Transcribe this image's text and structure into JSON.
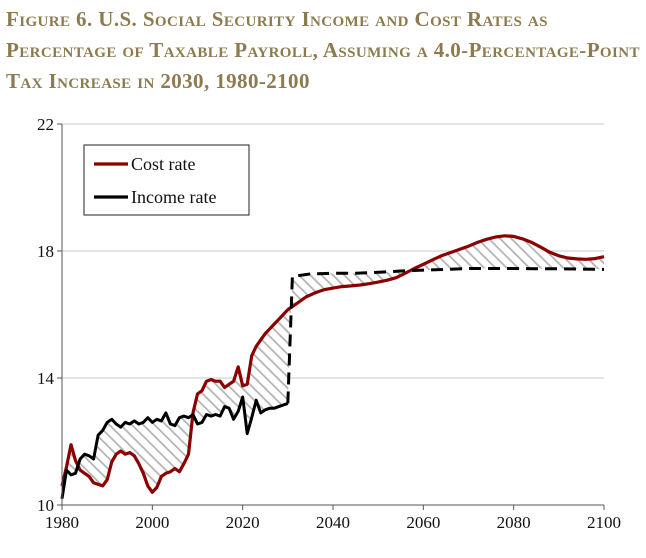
{
  "title": "Figure 6. U.S. Social Security Income and Cost Rates as Percentage of Taxable Payroll, Assuming a 4.0-Percentage-Point Tax Increase in 2030, 1980-2100",
  "chart_data": {
    "type": "line",
    "title": "Figure 6. U.S. Social Security Income and Cost Rates as Percentage of Taxable Payroll, Assuming a 4.0-Percentage-Point Tax Increase in 2030, 1980-2100",
    "xlabel": "",
    "ylabel": "",
    "xlim": [
      1980,
      2100
    ],
    "ylim": [
      10,
      22
    ],
    "x_ticks": [
      1980,
      2000,
      2020,
      2040,
      2060,
      2080,
      2100
    ],
    "y_ticks": [
      10,
      14,
      18,
      22
    ],
    "grid": "horizontal",
    "legend_position": "top-left",
    "shading": "hatched area between the two series",
    "series": [
      {
        "name": "Cost rate",
        "color": "#8b0000",
        "style": "solid",
        "points": [
          [
            1980,
            10.6
          ],
          [
            1981,
            11.2
          ],
          [
            1982,
            11.9
          ],
          [
            1983,
            11.4
          ],
          [
            1984,
            11.1
          ],
          [
            1985,
            11.0
          ],
          [
            1986,
            10.9
          ],
          [
            1987,
            10.7
          ],
          [
            1988,
            10.65
          ],
          [
            1989,
            10.6
          ],
          [
            1990,
            10.8
          ],
          [
            1991,
            11.35
          ],
          [
            1992,
            11.6
          ],
          [
            1993,
            11.7
          ],
          [
            1994,
            11.6
          ],
          [
            1995,
            11.65
          ],
          [
            1996,
            11.55
          ],
          [
            1997,
            11.3
          ],
          [
            1998,
            11.0
          ],
          [
            1999,
            10.6
          ],
          [
            2000,
            10.4
          ],
          [
            2001,
            10.55
          ],
          [
            2002,
            10.9
          ],
          [
            2003,
            11.0
          ],
          [
            2004,
            11.05
          ],
          [
            2005,
            11.15
          ],
          [
            2006,
            11.05
          ],
          [
            2007,
            11.3
          ],
          [
            2008,
            11.6
          ],
          [
            2009,
            12.9
          ],
          [
            2010,
            13.5
          ],
          [
            2011,
            13.6
          ],
          [
            2012,
            13.9
          ],
          [
            2013,
            13.95
          ],
          [
            2014,
            13.9
          ],
          [
            2015,
            13.9
          ],
          [
            2016,
            13.7
          ],
          [
            2017,
            13.8
          ],
          [
            2018,
            13.9
          ],
          [
            2019,
            14.35
          ],
          [
            2020,
            13.75
          ],
          [
            2021,
            13.8
          ],
          [
            2022,
            14.7
          ],
          [
            2023,
            15.0
          ],
          [
            2024,
            15.2
          ],
          [
            2025,
            15.4
          ],
          [
            2026,
            15.55
          ],
          [
            2027,
            15.7
          ],
          [
            2028,
            15.85
          ],
          [
            2029,
            16.0
          ],
          [
            2030,
            16.15
          ],
          [
            2032,
            16.35
          ],
          [
            2034,
            16.55
          ],
          [
            2036,
            16.68
          ],
          [
            2038,
            16.78
          ],
          [
            2040,
            16.83
          ],
          [
            2042,
            16.88
          ],
          [
            2044,
            16.9
          ],
          [
            2046,
            16.93
          ],
          [
            2048,
            16.97
          ],
          [
            2050,
            17.02
          ],
          [
            2052,
            17.08
          ],
          [
            2054,
            17.16
          ],
          [
            2056,
            17.3
          ],
          [
            2058,
            17.45
          ],
          [
            2060,
            17.58
          ],
          [
            2062,
            17.72
          ],
          [
            2064,
            17.85
          ],
          [
            2066,
            17.95
          ],
          [
            2068,
            18.05
          ],
          [
            2070,
            18.15
          ],
          [
            2072,
            18.27
          ],
          [
            2074,
            18.37
          ],
          [
            2076,
            18.44
          ],
          [
            2078,
            18.48
          ],
          [
            2080,
            18.46
          ],
          [
            2082,
            18.38
          ],
          [
            2084,
            18.27
          ],
          [
            2086,
            18.12
          ],
          [
            2088,
            17.96
          ],
          [
            2090,
            17.85
          ],
          [
            2092,
            17.78
          ],
          [
            2094,
            17.75
          ],
          [
            2096,
            17.74
          ],
          [
            2098,
            17.76
          ],
          [
            2100,
            17.82
          ]
        ]
      },
      {
        "name": "Income rate",
        "color": "#000000",
        "style": "solid through 2029, dashed from 2030",
        "points": [
          [
            1980,
            10.2
          ],
          [
            1981,
            11.1
          ],
          [
            1982,
            10.95
          ],
          [
            1983,
            11.0
          ],
          [
            1984,
            11.45
          ],
          [
            1985,
            11.6
          ],
          [
            1986,
            11.55
          ],
          [
            1987,
            11.45
          ],
          [
            1988,
            12.2
          ],
          [
            1989,
            12.35
          ],
          [
            1990,
            12.6
          ],
          [
            1991,
            12.7
          ],
          [
            1992,
            12.55
          ],
          [
            1993,
            12.45
          ],
          [
            1994,
            12.6
          ],
          [
            1995,
            12.55
          ],
          [
            1996,
            12.65
          ],
          [
            1997,
            12.55
          ],
          [
            1998,
            12.6
          ],
          [
            1999,
            12.75
          ],
          [
            2000,
            12.6
          ],
          [
            2001,
            12.7
          ],
          [
            2002,
            12.65
          ],
          [
            2003,
            12.9
          ],
          [
            2004,
            12.55
          ],
          [
            2005,
            12.5
          ],
          [
            2006,
            12.75
          ],
          [
            2007,
            12.8
          ],
          [
            2008,
            12.75
          ],
          [
            2009,
            12.85
          ],
          [
            2010,
            12.55
          ],
          [
            2011,
            12.6
          ],
          [
            2012,
            12.85
          ],
          [
            2013,
            12.8
          ],
          [
            2014,
            12.85
          ],
          [
            2015,
            12.8
          ],
          [
            2016,
            13.1
          ],
          [
            2017,
            13.05
          ],
          [
            2018,
            12.7
          ],
          [
            2019,
            12.95
          ],
          [
            2020,
            13.4
          ],
          [
            2021,
            12.25
          ],
          [
            2022,
            12.75
          ],
          [
            2023,
            13.3
          ],
          [
            2024,
            12.9
          ],
          [
            2025,
            13.0
          ],
          [
            2026,
            13.05
          ],
          [
            2027,
            13.05
          ],
          [
            2028,
            13.1
          ],
          [
            2029,
            13.15
          ],
          [
            2030,
            13.2
          ],
          [
            2031,
            17.2
          ],
          [
            2035,
            17.28
          ],
          [
            2040,
            17.3
          ],
          [
            2045,
            17.3
          ],
          [
            2050,
            17.33
          ],
          [
            2055,
            17.37
          ],
          [
            2060,
            17.4
          ],
          [
            2065,
            17.42
          ],
          [
            2070,
            17.45
          ],
          [
            2075,
            17.45
          ],
          [
            2080,
            17.45
          ],
          [
            2085,
            17.44
          ],
          [
            2090,
            17.44
          ],
          [
            2095,
            17.43
          ],
          [
            2100,
            17.42
          ]
        ],
        "solid_until": 2030
      }
    ]
  }
}
